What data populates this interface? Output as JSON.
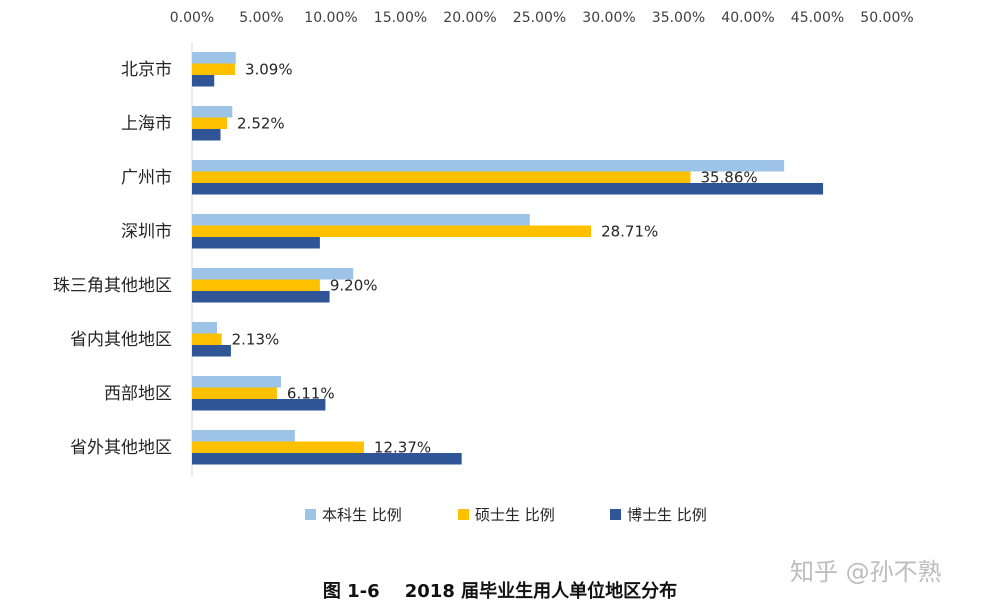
{
  "chart_data": {
    "type": "bar",
    "orientation": "horizontal",
    "categories": [
      "北京市",
      "上海市",
      "广州市",
      "深圳市",
      "珠三角其他地区",
      "省内其他地区",
      "西部地区",
      "省外其他地区"
    ],
    "series": [
      {
        "name": "本科生 比例",
        "color": "#9dc3e6",
        "values": [
          0.0315,
          0.029,
          0.426,
          0.243,
          0.116,
          0.018,
          0.064,
          0.074
        ]
      },
      {
        "name": "硕士生 比例",
        "color": "#ffc000",
        "values": [
          0.0309,
          0.0252,
          0.3586,
          0.2871,
          0.092,
          0.0213,
          0.0611,
          0.1237
        ],
        "data_labels": [
          "3.09%",
          "2.52%",
          "35.86%",
          "28.71%",
          "9.20%",
          "2.13%",
          "6.11%",
          "12.37%"
        ]
      },
      {
        "name": "博士生 比例",
        "color": "#2f5597",
        "values": [
          0.016,
          0.0205,
          0.454,
          0.092,
          0.099,
          0.028,
          0.096,
          0.194
        ]
      }
    ],
    "xlim": [
      0,
      0.5
    ],
    "x_ticks": [
      "0.00%",
      "5.00%",
      "10.00%",
      "15.00%",
      "20.00%",
      "25.00%",
      "30.00%",
      "35.00%",
      "40.00%",
      "45.00%",
      "50.00%"
    ],
    "x_axis_position": "top",
    "grid": false,
    "legend_position": "bottom",
    "title": "图 1-6    2018 届毕业生用人单位地区分布"
  },
  "watermark": "知乎 @孙不熟"
}
